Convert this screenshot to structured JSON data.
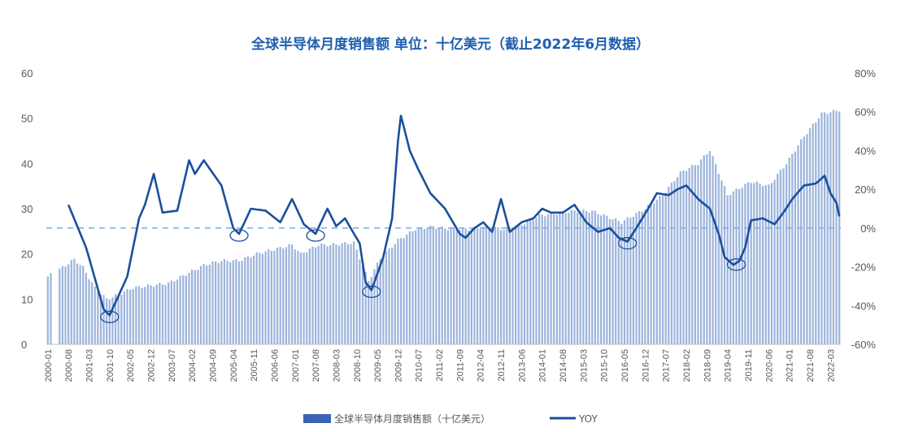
{
  "chart_data": {
    "type": "bar+line",
    "title": "全球半导体月度销售额  单位：十亿美元（截止2022年6月数据）",
    "y_left": {
      "range": [
        0,
        60
      ],
      "ticks": [
        "0",
        "10",
        "20",
        "30",
        "40",
        "50",
        "60"
      ]
    },
    "y_right": {
      "range": [
        -60,
        80
      ],
      "ticks": [
        "-60%",
        "-40%",
        "-20%",
        "0%",
        "20%",
        "40%",
        "60%",
        "80%"
      ]
    },
    "x_tick_labels": [
      "2000-01",
      "2000-08",
      "2001-03",
      "2001-10",
      "2002-05",
      "2002-12",
      "2003-07",
      "2004-02",
      "2004-09",
      "2005-04",
      "2005-11",
      "2006-06",
      "2007-01",
      "2007-08",
      "2008-03",
      "2008-10",
      "2009-05",
      "2009-12",
      "2010-07",
      "2011-02",
      "2011-09",
      "2012-04",
      "2012-11",
      "2013-06",
      "2014-01",
      "2014-08",
      "2015-03",
      "2015-10",
      "2016-05",
      "2016-12",
      "2017-07",
      "2018-02",
      "2018-09",
      "2019-04",
      "2019-11",
      "2020-06",
      "2021-01",
      "2021-08",
      "2022-03"
    ],
    "bar_series": {
      "name": "全球半导体月度销售额（十亿美元）",
      "color": "#9db4dc",
      "anchors": [
        [
          "2000-01",
          15
        ],
        [
          "2000-06",
          17
        ],
        [
          "2000-10",
          18.8
        ],
        [
          "2001-01",
          17
        ],
        [
          "2001-05",
          12.5
        ],
        [
          "2001-09",
          10
        ],
        [
          "2002-01",
          11
        ],
        [
          "2002-06",
          12.5
        ],
        [
          "2002-12",
          13
        ],
        [
          "2003-06",
          13.5
        ],
        [
          "2003-12",
          15.5
        ],
        [
          "2004-06",
          17.5
        ],
        [
          "2004-12",
          18.5
        ],
        [
          "2005-06",
          18.5
        ],
        [
          "2005-12",
          20
        ],
        [
          "2006-06",
          21
        ],
        [
          "2006-12",
          22
        ],
        [
          "2007-03",
          20
        ],
        [
          "2007-09",
          22
        ],
        [
          "2008-01",
          22
        ],
        [
          "2008-09",
          22.5
        ],
        [
          "2009-02",
          14
        ],
        [
          "2009-06",
          19
        ],
        [
          "2009-12",
          23
        ],
        [
          "2010-06",
          25.5
        ],
        [
          "2010-12",
          26
        ],
        [
          "2011-06",
          25.5
        ],
        [
          "2011-12",
          25.5
        ],
        [
          "2012-06",
          26
        ],
        [
          "2012-12",
          25.5
        ],
        [
          "2013-06",
          26.5
        ],
        [
          "2013-12",
          28.5
        ],
        [
          "2014-06",
          29
        ],
        [
          "2014-12",
          29.5
        ],
        [
          "2015-06",
          29.5
        ],
        [
          "2015-12",
          28
        ],
        [
          "2016-04",
          27
        ],
        [
          "2016-12",
          30
        ],
        [
          "2017-06",
          33
        ],
        [
          "2017-12",
          38
        ],
        [
          "2018-06",
          40
        ],
        [
          "2018-10",
          43
        ],
        [
          "2019-04",
          33
        ],
        [
          "2019-12",
          36
        ],
        [
          "2020-06",
          35
        ],
        [
          "2020-12",
          40
        ],
        [
          "2021-06",
          46
        ],
        [
          "2021-12",
          51
        ],
        [
          "2022-06",
          51.8
        ]
      ]
    },
    "line_series": {
      "name": "YOY",
      "color": "#1b4f9c",
      "anchors": [
        [
          "2000-08",
          12
        ],
        [
          "2001-02",
          -10
        ],
        [
          "2001-08",
          -42
        ],
        [
          "2001-10",
          -45
        ],
        [
          "2002-04",
          -25
        ],
        [
          "2002-08",
          5
        ],
        [
          "2002-10",
          12
        ],
        [
          "2003-01",
          28
        ],
        [
          "2003-04",
          8
        ],
        [
          "2003-09",
          9
        ],
        [
          "2004-01",
          35
        ],
        [
          "2004-03",
          28
        ],
        [
          "2004-06",
          35
        ],
        [
          "2004-12",
          22
        ],
        [
          "2005-04",
          0
        ],
        [
          "2005-06",
          -3
        ],
        [
          "2005-10",
          10
        ],
        [
          "2006-03",
          9
        ],
        [
          "2006-08",
          3
        ],
        [
          "2006-12",
          15
        ],
        [
          "2007-04",
          2
        ],
        [
          "2007-08",
          -3
        ],
        [
          "2007-12",
          10
        ],
        [
          "2008-03",
          1
        ],
        [
          "2008-06",
          5
        ],
        [
          "2008-11",
          -8
        ],
        [
          "2009-01",
          -28
        ],
        [
          "2009-03",
          -32
        ],
        [
          "2009-07",
          -15
        ],
        [
          "2009-10",
          5
        ],
        [
          "2009-12",
          45
        ],
        [
          "2010-01",
          58
        ],
        [
          "2010-04",
          40
        ],
        [
          "2010-07",
          30
        ],
        [
          "2010-11",
          18
        ],
        [
          "2011-04",
          10
        ],
        [
          "2011-09",
          -3
        ],
        [
          "2011-11",
          -5
        ],
        [
          "2012-02",
          0
        ],
        [
          "2012-05",
          3
        ],
        [
          "2012-08",
          -2
        ],
        [
          "2012-11",
          15
        ],
        [
          "2013-02",
          -2
        ],
        [
          "2013-06",
          3
        ],
        [
          "2013-10",
          5
        ],
        [
          "2014-01",
          10
        ],
        [
          "2014-04",
          8
        ],
        [
          "2014-08",
          8
        ],
        [
          "2014-12",
          12
        ],
        [
          "2015-04",
          3
        ],
        [
          "2015-08",
          -2
        ],
        [
          "2015-12",
          0
        ],
        [
          "2016-03",
          -5
        ],
        [
          "2016-06",
          -7
        ],
        [
          "2016-09",
          0
        ],
        [
          "2017-01",
          10
        ],
        [
          "2017-04",
          18
        ],
        [
          "2017-08",
          17
        ],
        [
          "2017-11",
          20
        ],
        [
          "2018-02",
          22
        ],
        [
          "2018-06",
          15
        ],
        [
          "2018-10",
          10
        ],
        [
          "2019-01",
          -3
        ],
        [
          "2019-03",
          -15
        ],
        [
          "2019-06",
          -19
        ],
        [
          "2019-08",
          -17
        ],
        [
          "2019-10",
          -10
        ],
        [
          "2019-12",
          4
        ],
        [
          "2020-04",
          5
        ],
        [
          "2020-08",
          2
        ],
        [
          "2020-11",
          8
        ],
        [
          "2021-02",
          15
        ],
        [
          "2021-06",
          22
        ],
        [
          "2021-10",
          23
        ],
        [
          "2022-01",
          27
        ],
        [
          "2022-03",
          18
        ],
        [
          "2022-05",
          13
        ],
        [
          "2022-06",
          6
        ]
      ]
    },
    "baseline_0pct": {
      "style": "dashed",
      "color": "#7fb2e5"
    },
    "highlight_circles_at": [
      "2001-10",
      "2005-06",
      "2007-08",
      "2009-03",
      "2016-06",
      "2019-07"
    ],
    "legend": {
      "position": "bottom",
      "items": [
        "全球半导体月度销售额（十亿美元）",
        "YOY"
      ]
    },
    "grid": false
  }
}
